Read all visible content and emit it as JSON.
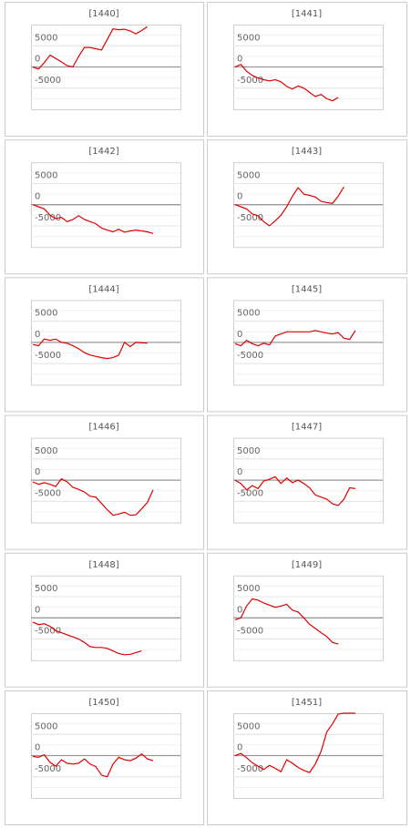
{
  "chart_data": [
    {
      "type": "line",
      "title": "[1440]",
      "color": "#e00000",
      "ylim": [
        -10000,
        10000
      ],
      "yticks": [
        -5000,
        0,
        5000
      ],
      "values": [
        0,
        -500,
        1000,
        2800,
        2000,
        1200,
        300,
        0,
        2500,
        4600,
        4600,
        4300,
        4000,
        6500,
        9000,
        8800,
        8900,
        8500,
        7800,
        8600,
        9500,
        null
      ]
    },
    {
      "type": "line",
      "title": "[1441]",
      "color": "#e00000",
      "ylim": [
        -10000,
        10000
      ],
      "yticks": [
        -5000,
        0,
        5000
      ],
      "values": [
        0,
        600,
        -1000,
        -2000,
        -2600,
        -3000,
        -3300,
        -3000,
        -3500,
        -4600,
        -5200,
        -4500,
        -5000,
        -6000,
        -7000,
        -6500,
        -7500,
        -8000,
        -7200,
        null,
        null,
        null
      ]
    },
    {
      "type": "line",
      "title": "[1442]",
      "color": "#e00000",
      "ylim": [
        -10000,
        10000
      ],
      "yticks": [
        -5000,
        0,
        5000
      ],
      "values": [
        0,
        -500,
        -1000,
        -2500,
        -3300,
        -3000,
        -4000,
        -3500,
        -2600,
        -3500,
        -4000,
        -4500,
        -5500,
        -6000,
        -6400,
        -5800,
        -6500,
        -6200,
        -6000,
        -6200,
        -6400,
        -6800
      ]
    },
    {
      "type": "line",
      "title": "[1443]",
      "color": "#e00000",
      "ylim": [
        -10000,
        10000
      ],
      "yticks": [
        -5000,
        0,
        5000
      ],
      "values": [
        0,
        -500,
        -1000,
        -2200,
        -2600,
        -4000,
        -5000,
        -3800,
        -2500,
        -500,
        2000,
        4000,
        2500,
        2200,
        1800,
        800,
        500,
        300,
        2000,
        4200,
        null,
        null
      ]
    },
    {
      "type": "line",
      "title": "[1444]",
      "color": "#e00000",
      "ylim": [
        -10000,
        10000
      ],
      "yticks": [
        -5000,
        0,
        5000
      ],
      "values": [
        -500,
        -800,
        800,
        500,
        800,
        0,
        -200,
        -800,
        -1500,
        -2400,
        -3000,
        -3300,
        -3600,
        -3800,
        -3600,
        -3000,
        0,
        -1000,
        0,
        -100,
        -200,
        null
      ]
    },
    {
      "type": "line",
      "title": "[1445]",
      "color": "#e00000",
      "ylim": [
        -10000,
        10000
      ],
      "yticks": [
        -5000,
        0,
        5000
      ],
      "values": [
        -300,
        -800,
        500,
        -300,
        -800,
        -200,
        -600,
        1500,
        2000,
        2500,
        2500,
        2500,
        2500,
        2500,
        2800,
        2500,
        2200,
        2000,
        2300,
        1000,
        700,
        2800
      ]
    },
    {
      "type": "line",
      "title": "[1446]",
      "color": "#e00000",
      "ylim": [
        -10000,
        10000
      ],
      "yticks": [
        -5000,
        0,
        5000
      ],
      "values": [
        -400,
        -1000,
        -600,
        -1000,
        -1500,
        300,
        -400,
        -1700,
        -2200,
        -2800,
        -3800,
        -4000,
        -5500,
        -7000,
        -8300,
        -8000,
        -7600,
        -8300,
        -8200,
        -6800,
        -5300,
        -2300
      ]
    },
    {
      "type": "line",
      "title": "[1447]",
      "color": "#e00000",
      "ylim": [
        -10000,
        10000
      ],
      "yticks": [
        -5000,
        0,
        5000
      ],
      "values": [
        0,
        -800,
        -2300,
        -1300,
        -2000,
        -200,
        200,
        800,
        -800,
        500,
        -600,
        0,
        -800,
        -1800,
        -3500,
        -4000,
        -4500,
        -5600,
        -6000,
        -4500,
        -1800,
        -2000
      ]
    },
    {
      "type": "line",
      "title": "[1448]",
      "color": "#e00000",
      "ylim": [
        -10000,
        10000
      ],
      "yticks": [
        -5000,
        0,
        5000
      ],
      "values": [
        -1000,
        -1600,
        -1400,
        -2000,
        -3000,
        -3500,
        -4000,
        -4500,
        -5000,
        -5800,
        -6800,
        -7000,
        -7000,
        -7200,
        -7800,
        -8400,
        -8700,
        -8600,
        -8200,
        -7800,
        null,
        null
      ]
    },
    {
      "type": "line",
      "title": "[1449]",
      "color": "#e00000",
      "ylim": [
        -10000,
        10000
      ],
      "yticks": [
        -5000,
        0,
        5000
      ],
      "values": [
        -500,
        0,
        2800,
        4500,
        4200,
        3500,
        3000,
        2500,
        2800,
        3200,
        1800,
        1400,
        0,
        -1500,
        -2500,
        -3500,
        -4400,
        -5800,
        -6200,
        null,
        null,
        null
      ]
    },
    {
      "type": "line",
      "title": "[1450]",
      "color": "#e00000",
      "ylim": [
        -10000,
        10000
      ],
      "yticks": [
        -5000,
        0,
        5000
      ],
      "values": [
        -200,
        -400,
        200,
        -1600,
        -2500,
        -1000,
        -1800,
        -2000,
        -1800,
        -800,
        -2000,
        -2600,
        -4600,
        -5000,
        -2000,
        -400,
        -1000,
        -1200,
        -600,
        400,
        -800,
        -1200
      ]
    },
    {
      "type": "line",
      "title": "[1451]",
      "color": "#e00000",
      "ylim": [
        -10000,
        10000
      ],
      "yticks": [
        -5000,
        0,
        5000
      ],
      "values": [
        0,
        500,
        -500,
        -1700,
        -2500,
        -3300,
        -2300,
        -3000,
        -3800,
        -1000,
        -1800,
        -2800,
        -3500,
        -4000,
        -2000,
        1000,
        5600,
        7500,
        9800,
        10000,
        10000,
        10000
      ]
    }
  ]
}
